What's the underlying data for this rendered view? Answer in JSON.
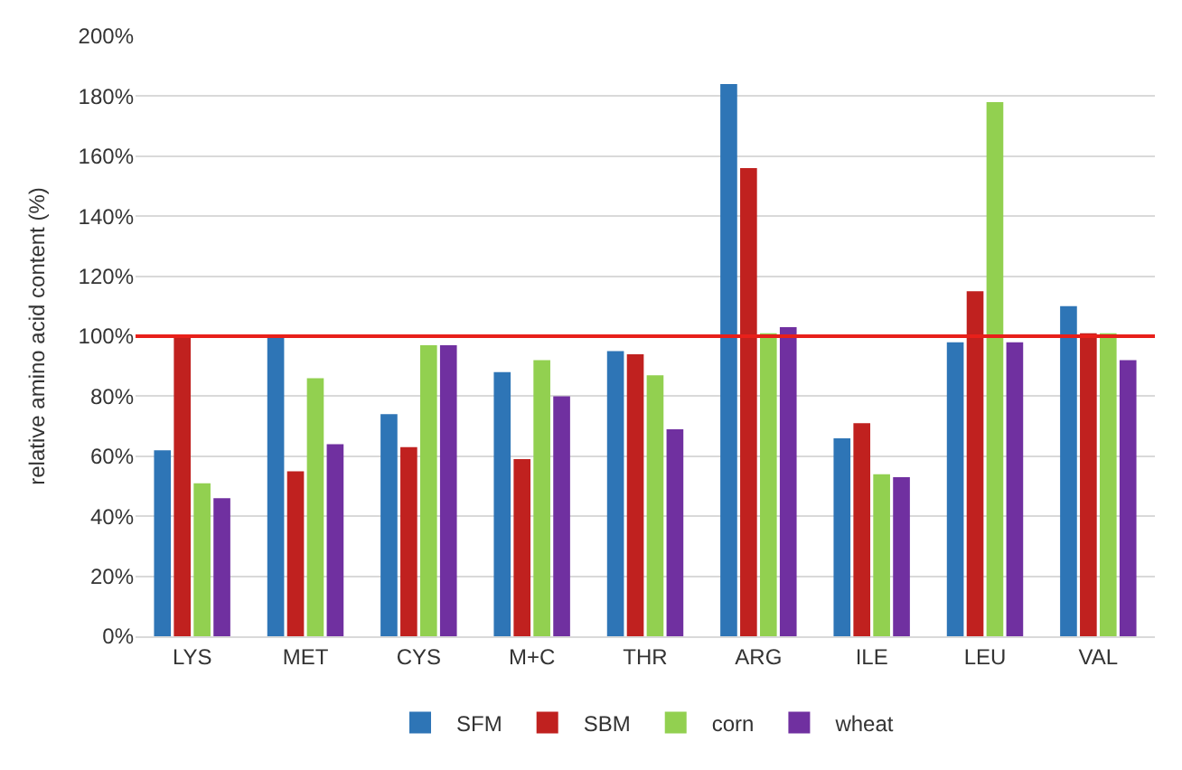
{
  "chart_data": {
    "type": "bar",
    "ylabel": "relative amino acid content (%)",
    "categories": [
      "LYS",
      "MET",
      "CYS",
      "M+C",
      "THR",
      "ARG",
      "ILE",
      "LEU",
      "VAL"
    ],
    "series": [
      {
        "name": "SFM",
        "color": "#2e75b6",
        "values": [
          62,
          100,
          74,
          88,
          95,
          184,
          66,
          98,
          110
        ]
      },
      {
        "name": "SBM",
        "color": "#c0211f",
        "values": [
          100,
          55,
          63,
          59,
          94,
          156,
          71,
          115,
          101
        ]
      },
      {
        "name": "corn",
        "color": "#92d050",
        "values": [
          51,
          86,
          97,
          92,
          87,
          101,
          54,
          178,
          101
        ]
      },
      {
        "name": "wheat",
        "color": "#7030a0",
        "values": [
          46,
          64,
          97,
          80,
          69,
          103,
          53,
          98,
          92
        ]
      }
    ],
    "ylim": [
      0,
      200
    ],
    "yticks": [
      {
        "value": 0,
        "label": "0%"
      },
      {
        "value": 20,
        "label": "20%"
      },
      {
        "value": 40,
        "label": "40%"
      },
      {
        "value": 60,
        "label": "60%"
      },
      {
        "value": 80,
        "label": "80%"
      },
      {
        "value": 100,
        "label": "100%"
      },
      {
        "value": 120,
        "label": "120%"
      },
      {
        "value": 140,
        "label": "140%"
      },
      {
        "value": 160,
        "label": "160%"
      },
      {
        "value": 180,
        "label": "180%"
      },
      {
        "value": 200,
        "label": "200%"
      }
    ],
    "ref_lines": [
      {
        "axis": "y",
        "value": 100,
        "color": "#e8201a"
      }
    ],
    "grid": "y",
    "legend": "bottom"
  }
}
